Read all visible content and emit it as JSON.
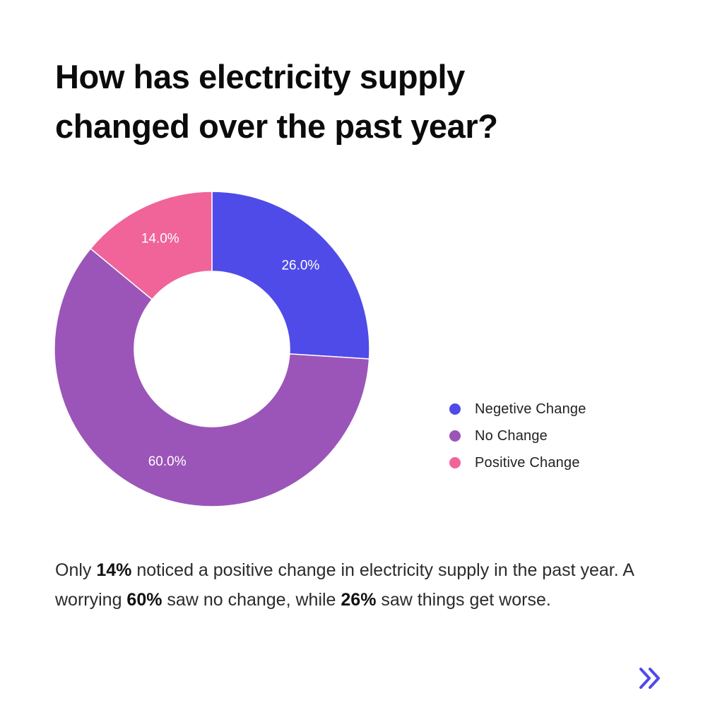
{
  "title": {
    "line1": "How has electricity supply",
    "line2": "changed over the past year?"
  },
  "chart_data": {
    "type": "pie",
    "donut": true,
    "categories": [
      "Negetive Change",
      "No Change",
      "Positive Change"
    ],
    "values": [
      26.0,
      60.0,
      14.0
    ],
    "labels": [
      "26.0%",
      "60.0%",
      "14.0%"
    ],
    "colors": [
      "#4f4be8",
      "#9b55b9",
      "#f0649a"
    ],
    "start_angle_deg": 0,
    "direction": "clockwise",
    "legend_position": "right"
  },
  "summary": {
    "p1": "Only ",
    "b1": "14%",
    "p2": " noticed a positive change in electricity supply in the past year. A worrying ",
    "b2": "60%",
    "p3": " saw no change, while ",
    "b3": "26%",
    "p4": " saw things get worse."
  },
  "nav": {
    "next_icon": "double-chevron-right-icon",
    "next_color": "#4f4be8"
  }
}
